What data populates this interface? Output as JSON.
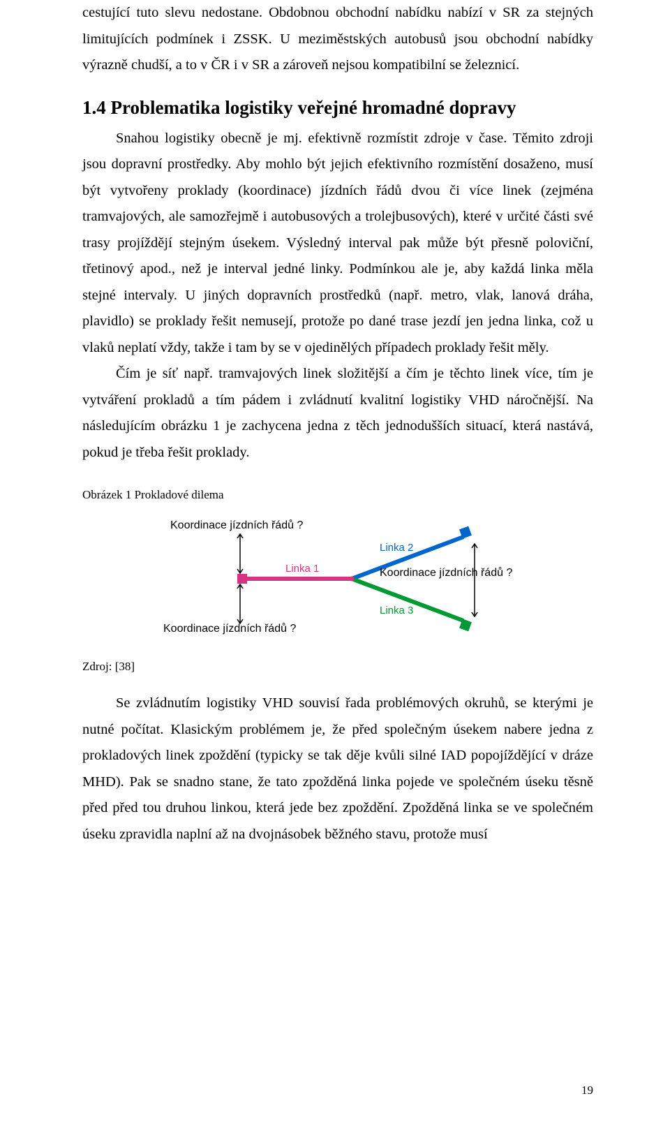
{
  "p1": "cestující tuto slevu nedostane. Obdobnou obchodní nabídku nabízí v SR za stejných limitujících podmínek i ZSSK. U meziměstských autobusů jsou obchodní nabídky výrazně chudší, a to v ČR i v SR a zároveň nejsou kompatibilní se železnicí.",
  "heading": "1.4 Problematika logistiky veřejné hromadné dopravy",
  "p2": "Snahou logistiky obecně je mj. efektivně rozmístit zdroje v čase. Těmito zdroji jsou dopravní prostředky. Aby mohlo být jejich efektivního rozmístění dosaženo, musí být vytvořeny proklady (koordinace) jízdních řádů dvou či více linek (zejména tramvajových, ale samozřejmě i autobusových a trolejbusových), které v určité části své trasy projíždějí stejným úsekem. Výsledný interval pak může být přesně poloviční, třetinový apod., než je interval jedné linky. Podmínkou ale je, aby každá linka měla stejné intervaly. U jiných dopravních prostředků (např. metro, vlak, lanová dráha, plavidlo) se proklady řešit nemusejí, protože po dané trase jezdí jen jedna linka, což u vlaků neplatí vždy, takže i tam by se v ojedinělých případech proklady řešit měly.",
  "p3": "Čím je síť např. tramvajových linek složitější a čím je těchto linek více, tím je vytváření prokladů a tím pádem i zvládnutí kvalitní logistiky VHD náročnější. Na následujícím obrázku 1 je zachycena jedna z těch jednodušších situací, která nastává, pokud je třeba řešit proklady.",
  "figcap": "Obrázek 1 Prokladové dilema",
  "source": "Zdroj: [38]",
  "p4": "Se zvládnutím logistiky VHD souvisí řada problémových okruhů, se kterými je nutné počítat. Klasickým problémem je, že před společným úsekem nabere jedna z prokladových linek zpoždění (typicky se tak děje kvůli silné IAD popojíždějící v dráze MHD). Pak se snadno stane, že tato zpožděná linka pojede ve společném úseku těsně před před tou druhou linkou, která jede bez zpoždění. Zpožděná linka se ve společném úseku zpravidla naplní až na dvojnásobek běžného stavu, protože musí",
  "pagenum": "19",
  "diagram": {
    "type": "network",
    "labels": {
      "top": "Koordinace jízdních řádů ?",
      "right": "Koordinace jízdních řádů ?",
      "bottom": "Koordinace jízdních řádů ?",
      "linka1": "Linka 1",
      "linka2": "Linka 2",
      "linka3": "Linka 3"
    },
    "colors": {
      "linka1": "#d63384",
      "linka2": "#0066cc",
      "linka3": "#009933",
      "text": "#000000",
      "linka1_text": "#d63384",
      "linka2_text": "#0066cc",
      "linka3_text": "#009933",
      "arrow": "#000000"
    },
    "label_fontsize": 16,
    "linka_fontsize": 15,
    "stroke_width": 6,
    "endcap_w": 14,
    "endcap_h": 14
  }
}
